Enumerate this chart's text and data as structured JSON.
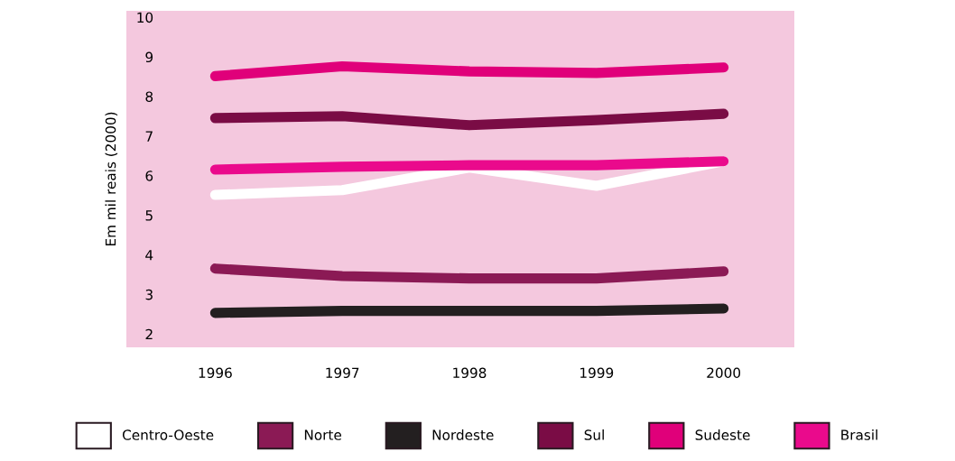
{
  "chart_data": {
    "type": "line",
    "ylabel": "Em mil reais (2000)",
    "categories": [
      "1996",
      "1997",
      "1998",
      "1999",
      "2000"
    ],
    "ylim": [
      1.7,
      10.2
    ],
    "yticks": [
      2,
      3,
      4,
      5,
      6,
      7,
      8,
      9,
      10
    ],
    "grid": false,
    "legend": "bottom",
    "marker": "none",
    "line_style": "solid",
    "series": [
      {
        "name": "Centro-Oeste",
        "color": "#ffffff",
        "values": [
          5.55,
          5.67,
          6.24,
          5.78,
          6.4
        ]
      },
      {
        "name": "Norte",
        "color": "#8b1a55",
        "values": [
          3.69,
          3.5,
          3.44,
          3.44,
          3.62
        ]
      },
      {
        "name": "Nordeste",
        "color": "#231f20",
        "values": [
          2.57,
          2.62,
          2.62,
          2.62,
          2.68
        ]
      },
      {
        "name": "Sul",
        "color": "#7a0c45",
        "values": [
          7.49,
          7.54,
          7.31,
          7.44,
          7.6
        ]
      },
      {
        "name": "Sudeste",
        "color": "#e0007a",
        "values": [
          8.55,
          8.8,
          8.67,
          8.63,
          8.77
        ]
      },
      {
        "name": "Brasil",
        "color": "#ea0a8c",
        "values": [
          6.19,
          6.26,
          6.3,
          6.3,
          6.4
        ]
      }
    ]
  }
}
